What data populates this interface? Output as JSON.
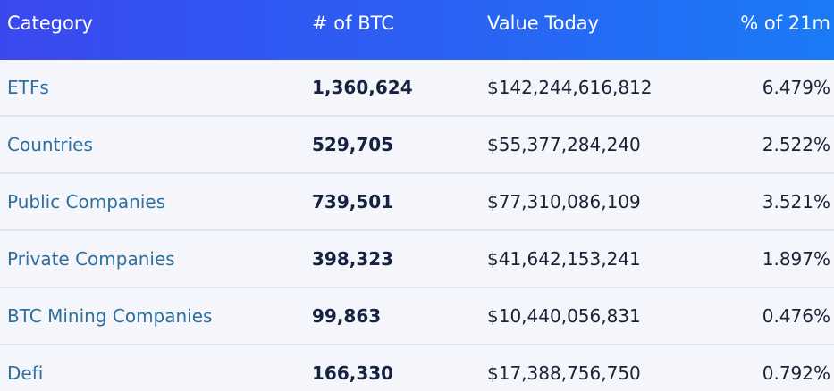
{
  "header": {
    "category": "Category",
    "btc": "# of BTC",
    "value": "Value Today",
    "pct": "% of 21m"
  },
  "rows": [
    {
      "category": "ETFs",
      "btc": "1,360,624",
      "value": "$142,244,616,812",
      "pct": "6.479%"
    },
    {
      "category": "Countries",
      "btc": "529,705",
      "value": "$55,377,284,240",
      "pct": "2.522%"
    },
    {
      "category": "Public Companies",
      "btc": "739,501",
      "value": "$77,310,086,109",
      "pct": "3.521%"
    },
    {
      "category": "Private Companies",
      "btc": "398,323",
      "value": "$41,642,153,241",
      "pct": "1.897%"
    },
    {
      "category": "BTC Mining Companies",
      "btc": "99,863",
      "value": "$10,440,056,831",
      "pct": "0.476%"
    },
    {
      "category": "Defi",
      "btc": "166,330",
      "value": "$17,388,756,750",
      "pct": "0.792%"
    }
  ],
  "colors": {
    "header_start": "#3a48f0",
    "header_end": "#1a7bf6",
    "link": "#2e6f9e",
    "row_bg": "#f4f6fc"
  }
}
